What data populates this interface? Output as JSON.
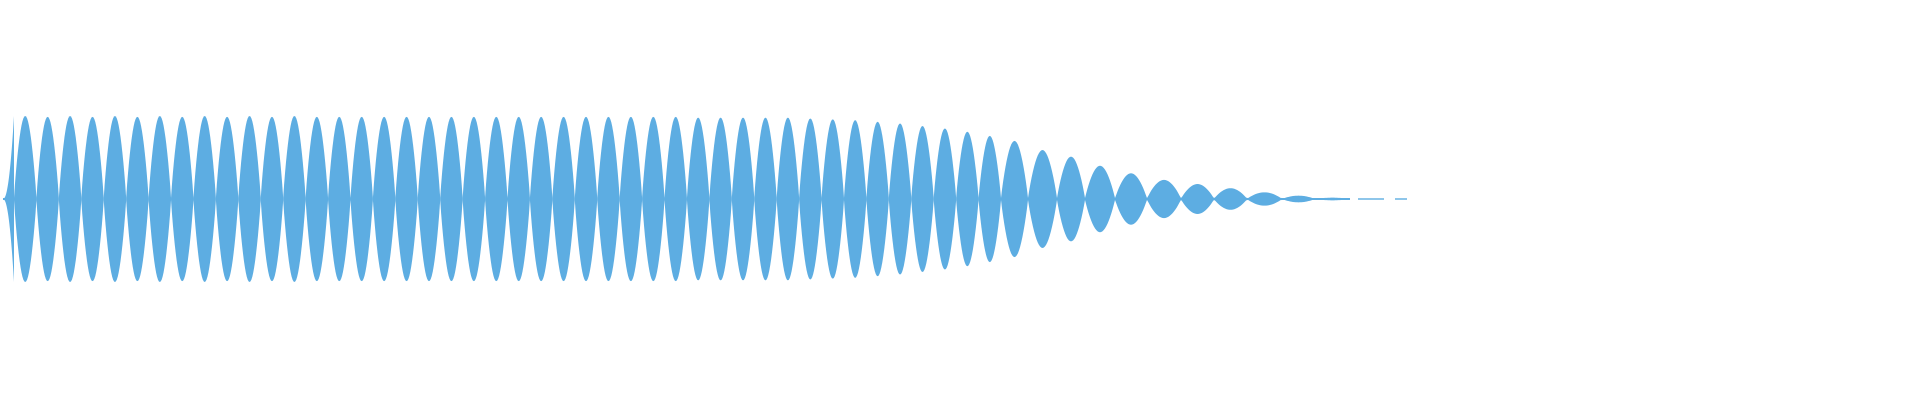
{
  "chart_data": {
    "type": "area",
    "kind": "audio-waveform",
    "color": "#5dade2",
    "background": "#ffffff",
    "grid": false,
    "axes_visible": false,
    "ylim": [
      -1,
      1
    ],
    "attack_peak": 0.2,
    "lobe_peaks": [
      1.0,
      0.99,
      1.0,
      0.99,
      1.0,
      0.99,
      1.0,
      0.99,
      1.0,
      0.99,
      1.0,
      0.99,
      1.0,
      0.99,
      0.99,
      0.99,
      0.99,
      0.99,
      0.99,
      0.99,
      0.99,
      0.99,
      0.99,
      0.99,
      0.99,
      0.99,
      0.99,
      0.99,
      0.99,
      0.99,
      0.98,
      0.98,
      0.98,
      0.98,
      0.98,
      0.97,
      0.96,
      0.95,
      0.93,
      0.91,
      0.88,
      0.85,
      0.81,
      0.76,
      0.7,
      0.59,
      0.51,
      0.4,
      0.31,
      0.23,
      0.18,
      0.13,
      0.08,
      0.04,
      0.016
    ],
    "tail_segments": [
      0.006,
      0.006
    ]
  }
}
